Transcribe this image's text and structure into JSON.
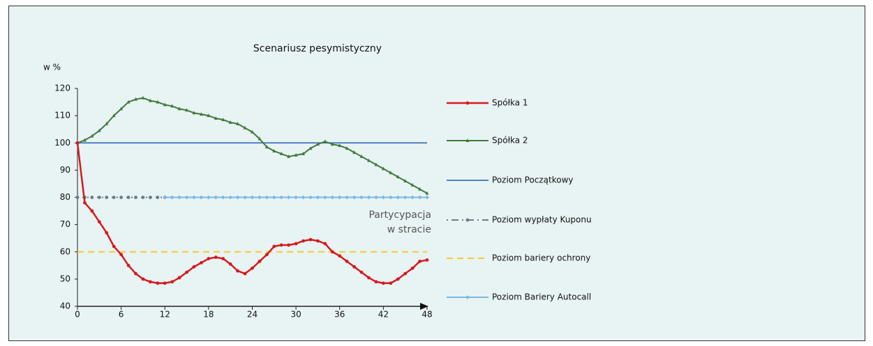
{
  "chart_data": {
    "type": "line",
    "title": "Scenariusz pesymistyczny",
    "y_label": "w %",
    "annotation_lines": [
      "Partycypacja",
      "w stracie"
    ],
    "x": [
      0,
      1,
      2,
      3,
      4,
      5,
      6,
      7,
      8,
      9,
      10,
      11,
      12,
      13,
      14,
      15,
      16,
      17,
      18,
      19,
      20,
      21,
      22,
      23,
      24,
      25,
      26,
      27,
      28,
      29,
      30,
      31,
      32,
      33,
      34,
      35,
      36,
      37,
      38,
      39,
      40,
      41,
      42,
      43,
      44,
      45,
      46,
      47,
      48
    ],
    "xlim": [
      0,
      48
    ],
    "xticks": [
      0,
      6,
      12,
      18,
      24,
      30,
      36,
      42,
      48
    ],
    "ylim": [
      40,
      120
    ],
    "yticks": [
      40,
      50,
      60,
      70,
      80,
      90,
      100,
      110,
      120
    ],
    "series": [
      {
        "name": "Spółka 1",
        "color": "#d7191c",
        "line_style": "solid",
        "marker": "circle",
        "width": 2.5,
        "values": [
          100,
          78,
          75,
          71,
          67,
          62,
          59,
          55,
          52,
          50,
          49,
          48.5,
          48.5,
          49,
          50.5,
          52.5,
          54.5,
          56,
          57.5,
          58,
          57.5,
          55.5,
          53,
          52,
          54,
          56.5,
          59,
          62,
          62.5,
          62.5,
          63,
          64,
          64.5,
          64,
          63,
          60,
          58.5,
          56.5,
          54.5,
          52.5,
          50.5,
          49,
          48.5,
          48.5,
          50,
          52,
          54,
          56.5,
          57
        ]
      },
      {
        "name": "Spółka 2",
        "color": "#3e7a3a",
        "line_style": "solid",
        "marker": "triangle",
        "width": 2,
        "values": [
          100,
          101,
          102.5,
          104.5,
          107,
          110,
          112.5,
          115,
          116,
          116.5,
          115.5,
          115,
          114,
          113.5,
          112.5,
          112,
          111,
          110.5,
          110,
          109,
          108.5,
          107.5,
          107,
          105.5,
          104,
          101.5,
          98.5,
          97,
          96,
          95,
          95.5,
          96,
          98,
          99.5,
          100.5,
          99.5,
          99,
          98,
          96.5,
          95,
          93.5,
          92,
          90.5,
          89,
          87.5,
          86,
          84.5,
          83,
          81.5
        ]
      },
      {
        "name": "Poziom Początkowy",
        "color": "#3a72b8",
        "line_style": "solid",
        "marker": "none",
        "width": 1.8,
        "values": [
          100,
          100,
          100,
          100,
          100,
          100,
          100,
          100,
          100,
          100,
          100,
          100,
          100,
          100,
          100,
          100,
          100,
          100,
          100,
          100,
          100,
          100,
          100,
          100,
          100,
          100,
          100,
          100,
          100,
          100,
          100,
          100,
          100,
          100,
          100,
          100,
          100,
          100,
          100,
          100,
          100,
          100,
          100,
          100,
          100,
          100,
          100,
          100,
          100
        ]
      },
      {
        "name": "Poziom wypłaty Kuponu",
        "color": "#6d7b86",
        "line_style": "dotted",
        "marker": "circle",
        "width": 2,
        "values": [
          80,
          80,
          80,
          80,
          80,
          80,
          80,
          80,
          80,
          80,
          80,
          80,
          80,
          null,
          null,
          null,
          null,
          null,
          null,
          null,
          null,
          null,
          null,
          null,
          null,
          null,
          null,
          null,
          null,
          null,
          null,
          null,
          null,
          null,
          null,
          null,
          null,
          null,
          null,
          null,
          null,
          null,
          null,
          null,
          null,
          null,
          null,
          null,
          null
        ]
      },
      {
        "name": "Poziom bariery ochrony",
        "color": "#f2cc2e",
        "line_style": "dashed",
        "marker": "none",
        "width": 2,
        "values": [
          60,
          60,
          60,
          60,
          60,
          60,
          60,
          60,
          60,
          60,
          60,
          60,
          60,
          60,
          60,
          60,
          60,
          60,
          60,
          60,
          60,
          60,
          60,
          60,
          60,
          60,
          60,
          60,
          60,
          60,
          60,
          60,
          60,
          60,
          60,
          60,
          60,
          60,
          60,
          60,
          60,
          60,
          60,
          60,
          60,
          60,
          60,
          60,
          60
        ]
      },
      {
        "name": "Poziom Bariery Autocall",
        "color": "#79b8e3",
        "line_style": "solid",
        "marker": "diamond",
        "width": 2,
        "values": [
          null,
          null,
          null,
          null,
          null,
          null,
          null,
          null,
          null,
          null,
          null,
          null,
          80,
          80,
          80,
          80,
          80,
          80,
          80,
          80,
          80,
          80,
          80,
          80,
          80,
          80,
          80,
          80,
          80,
          80,
          80,
          80,
          80,
          80,
          80,
          80,
          80,
          80,
          80,
          80,
          80,
          80,
          80,
          80,
          80,
          80,
          80,
          80,
          80
        ]
      }
    ]
  }
}
